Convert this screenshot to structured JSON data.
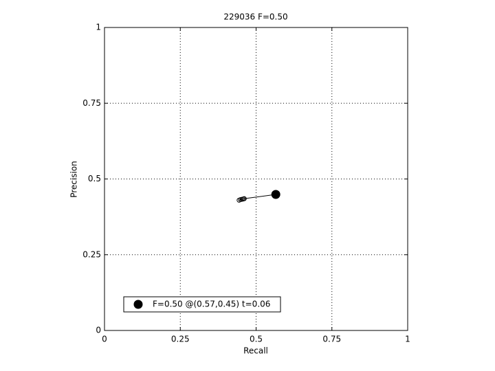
{
  "chart_data": {
    "type": "scatter",
    "title": "229036 F=0.50",
    "xlabel": "Recall",
    "ylabel": "Precision",
    "xlim": [
      0,
      1
    ],
    "ylim": [
      0,
      1
    ],
    "xticks": [
      0,
      0.25,
      0.5,
      0.75,
      1
    ],
    "yticks": [
      0,
      0.25,
      0.5,
      0.75,
      1
    ],
    "grid": true,
    "legend_location": "lower left",
    "series": [
      {
        "color": "#000000",
        "marker": "open-circle",
        "line": true,
        "x": [
          0.444,
          0.449,
          0.454,
          0.458,
          0.461,
          0.565
        ],
        "values": [
          0.43,
          0.432,
          0.433,
          0.434,
          0.435,
          0.449
        ]
      },
      {
        "name": "F=0.50 @(0.57,0.45) t=0.06",
        "color": "#000000",
        "marker": "filled-circle",
        "line": false,
        "x": [
          0.565
        ],
        "values": [
          0.449
        ]
      }
    ]
  }
}
